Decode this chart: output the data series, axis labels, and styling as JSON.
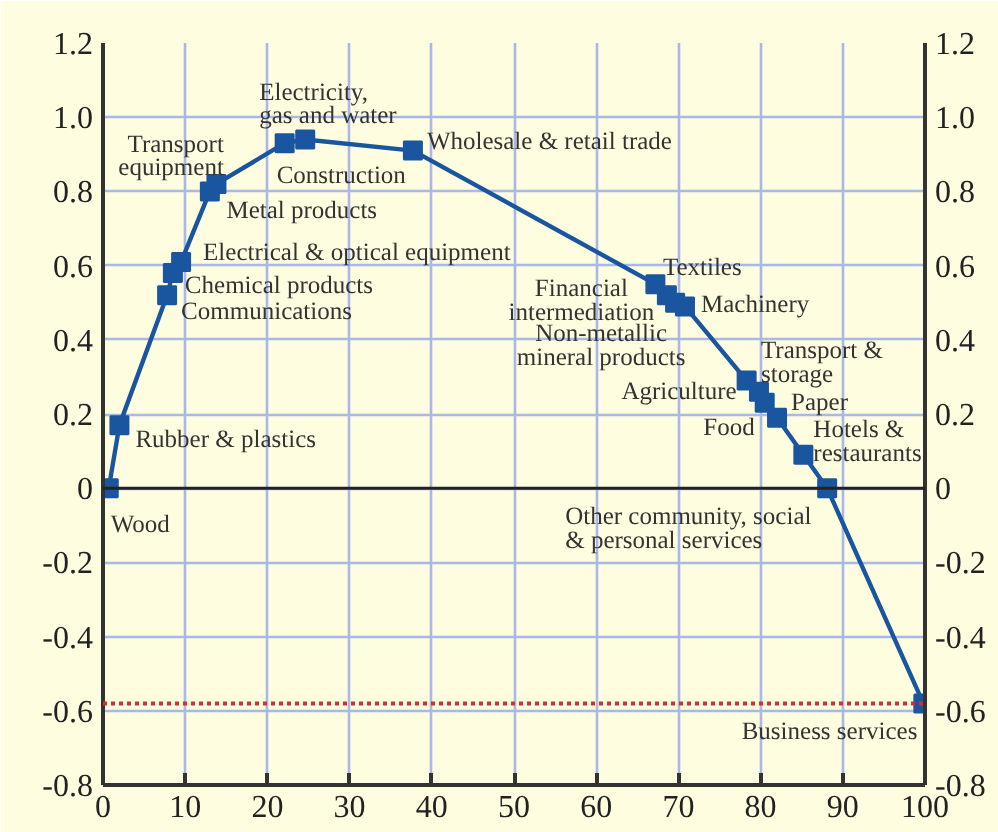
{
  "chart_data": {
    "type": "line",
    "x": [
      0.7,
      2.0,
      7.8,
      8.5,
      9.5,
      13.0,
      13.8,
      22.1,
      24.6,
      37.7,
      67.2,
      68.6,
      69.6,
      70.8,
      78.3,
      79.8,
      80.5,
      82.0,
      85.2,
      88.1,
      99.8
    ],
    "series": [
      {
        "color": "#1a56a0",
        "values": [
          0.0,
          0.17,
          0.52,
          0.58,
          0.61,
          0.8,
          0.82,
          0.93,
          0.94,
          0.91,
          0.55,
          0.52,
          0.5,
          0.49,
          0.29,
          0.26,
          0.23,
          0.19,
          0.09,
          0.0,
          -0.58
        ]
      }
    ],
    "marker": "square",
    "line_style": "solid",
    "grid": true,
    "xlim": [
      0,
      100
    ],
    "xticks": [
      0,
      10,
      20,
      30,
      40,
      50,
      60,
      70,
      80,
      90,
      100
    ],
    "ylim": [
      -0.8,
      1.2
    ],
    "yticks": [
      -0.8,
      -0.6,
      -0.4,
      -0.2,
      0,
      0.2,
      0.4,
      0.6,
      0.8,
      {
        "value": 1,
        "label": "1.0"
      },
      1.2
    ],
    "y2lim": [
      -0.8,
      1.2
    ],
    "y2ticks": [
      -0.8,
      -0.6,
      -0.4,
      -0.2,
      0,
      0.2,
      0.4,
      0.6,
      0.8,
      {
        "value": 1,
        "label": "1.0"
      },
      1.2
    ],
    "ref_lines": [
      {
        "axis": "y",
        "value": 0,
        "color": "#222222",
        "line_style": "solid"
      },
      {
        "axis": "y",
        "value": -0.58,
        "color": "#d03030",
        "line_style": "dotted"
      }
    ],
    "annotations": [
      {
        "text": "Wood",
        "x": 0.7,
        "y": 0.0
      },
      {
        "text": "Rubber & plastics",
        "x": 2.0,
        "y": 0.17
      },
      {
        "text": "Communications",
        "x": 7.8,
        "y": 0.52
      },
      {
        "text": "Chemical products",
        "x": 8.5,
        "y": 0.58
      },
      {
        "text": "Electrical & optical equipment",
        "x": 9.5,
        "y": 0.61
      },
      {
        "text": "Transport\nequipment",
        "x": 13.0,
        "y": 0.8
      },
      {
        "text": "Metal products",
        "x": 13.8,
        "y": 0.82
      },
      {
        "text": "Construction",
        "x": 22.1,
        "y": 0.93
      },
      {
        "text": "Electricity,\ngas and water",
        "x": 24.6,
        "y": 0.94
      },
      {
        "text": "Wholesale & retail trade",
        "x": 37.7,
        "y": 0.91
      },
      {
        "text": "Financial\nintermediation",
        "x": 67.2,
        "y": 0.55
      },
      {
        "text": "Textiles",
        "x": 68.6,
        "y": 0.52
      },
      {
        "text": "Non-metallic\nmineral products",
        "x": 69.6,
        "y": 0.5
      },
      {
        "text": "Machinery",
        "x": 70.8,
        "y": 0.49
      },
      {
        "text": "Agriculture",
        "x": 78.3,
        "y": 0.29
      },
      {
        "text": "Transport &\nstorage",
        "x": 79.8,
        "y": 0.26
      },
      {
        "text": "Food",
        "x": 80.5,
        "y": 0.23
      },
      {
        "text": "Paper",
        "x": 82.0,
        "y": 0.19
      },
      {
        "text": "Hotels &\nrestaurants",
        "x": 85.2,
        "y": 0.09
      },
      {
        "text": "Other community, social\n& personal services",
        "x": 88.1,
        "y": 0.0
      },
      {
        "text": "Business services",
        "x": 99.8,
        "y": -0.58
      }
    ]
  }
}
